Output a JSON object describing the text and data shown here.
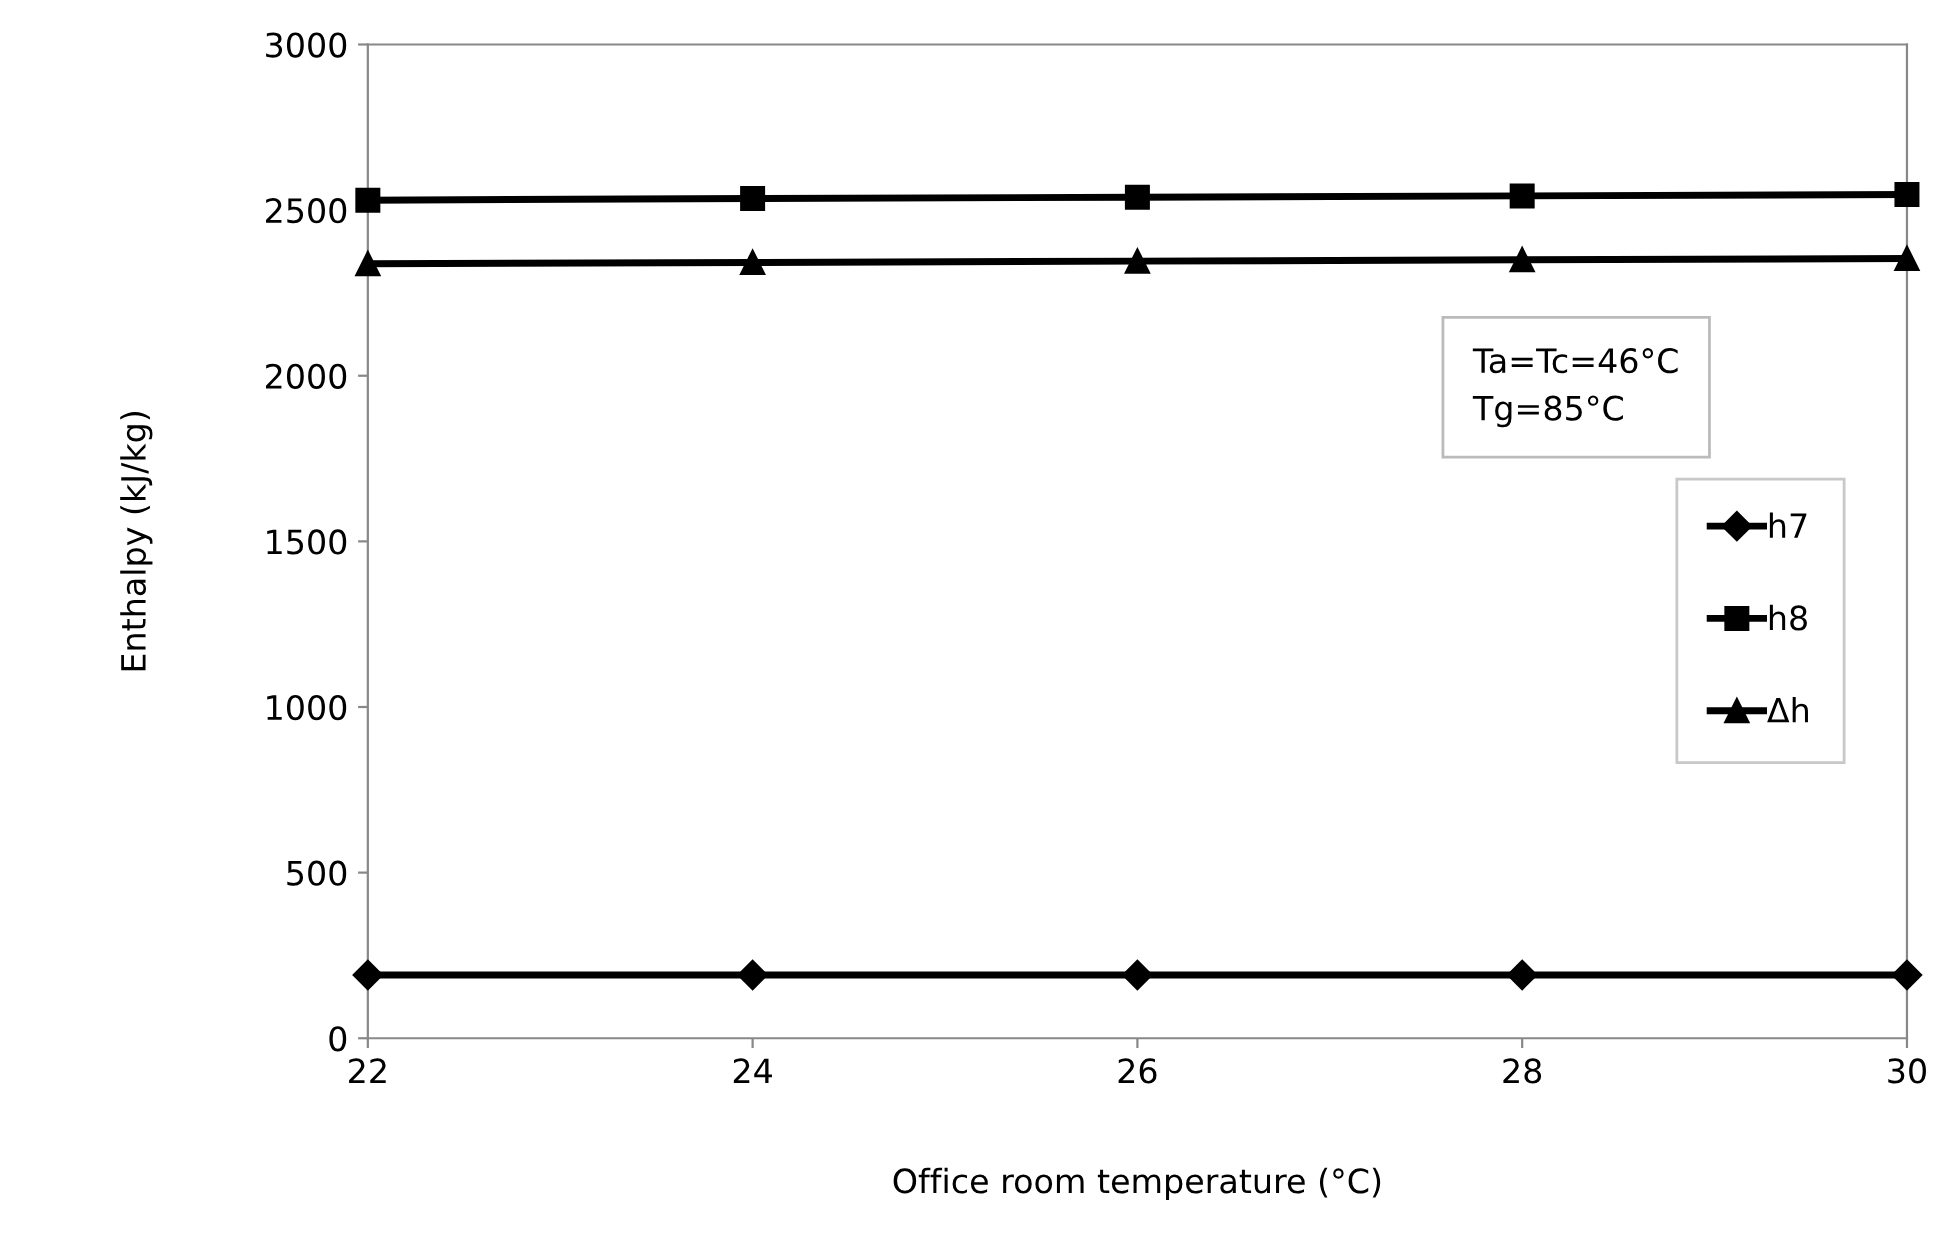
{
  "chart_data": {
    "type": "line",
    "xlabel": "Office room temperature (°C)",
    "ylabel": "Enthalpy (kJ/kg)",
    "x": [
      22,
      24,
      26,
      28,
      30
    ],
    "xlim": [
      22,
      30
    ],
    "xticks": [
      22,
      24,
      26,
      28,
      30
    ],
    "ylim": [
      0,
      3000
    ],
    "yticks": [
      0,
      500,
      1000,
      1500,
      2000,
      2500,
      3000
    ],
    "grid": false,
    "legend": "right",
    "line_style": "solid",
    "annotations": [
      "Ta=Tc=46°C\nTg=85°C"
    ],
    "series": [
      {
        "name": "h7",
        "color": "#000000",
        "marker": "diamond",
        "values": [
          191,
          191,
          191,
          191,
          191
        ]
      },
      {
        "name": "h8",
        "color": "#000000",
        "marker": "square",
        "values": [
          2530,
          2535,
          2539,
          2543,
          2547
        ]
      },
      {
        "name": "Δh",
        "color": "#000000",
        "marker": "triangle",
        "values": [
          2338,
          2342,
          2346,
          2350,
          2354
        ]
      }
    ]
  }
}
